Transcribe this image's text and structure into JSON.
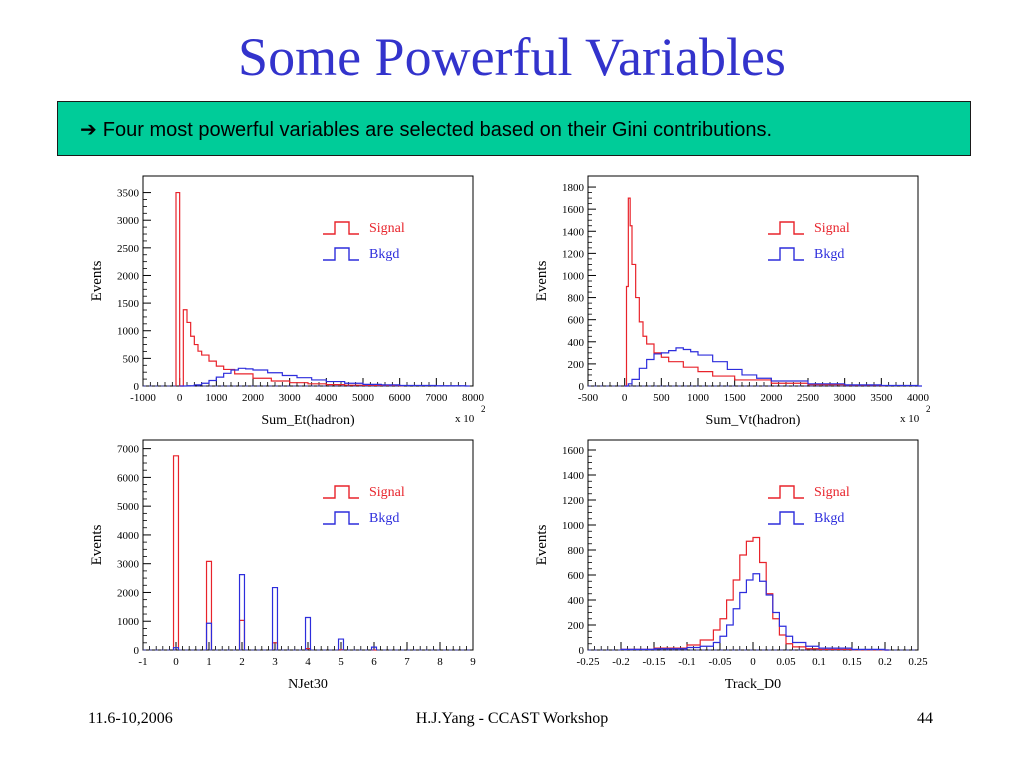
{
  "slide": {
    "title": "Some Powerful Variables",
    "callout": "Four most powerful variables are selected based on their Gini contributions.",
    "callout_icon": "right-arrow-icon",
    "callout_color": "#00cc99",
    "title_color": "#3333cc"
  },
  "footer": {
    "date": "11.6-10,2006",
    "center": "H.J.Yang - CCAST Workshop",
    "page": "44"
  },
  "colors": {
    "signal": "#e8232b",
    "bkgd": "#2d2ddc"
  },
  "chart_data": [
    {
      "type": "histogram",
      "xlabel": "Sum_Et(hadron)",
      "ylabel": "Events",
      "multiplier": "x 10",
      "multiplier_exp": "2",
      "xlim": [
        -1000,
        8000
      ],
      "ylim": [
        0,
        3800
      ],
      "xticks": [
        -1000,
        0,
        1000,
        2000,
        3000,
        4000,
        5000,
        6000,
        7000,
        8000
      ],
      "xtick_labels": [
        "-1000",
        "0",
        "1000",
        "2000",
        "3000",
        "4000",
        "5000",
        "6000",
        "7000",
        "8000"
      ],
      "yticks": [
        0,
        500,
        1000,
        1500,
        2000,
        2500,
        3000,
        3500
      ],
      "legend": [
        "Signal",
        "Bkgd"
      ],
      "legend_position": "top-right",
      "series": [
        {
          "name": "Signal",
          "x": [
            -100,
            0,
            100,
            200,
            300,
            400,
            500,
            600,
            800,
            1000,
            1200,
            1500,
            2000,
            2500,
            3000,
            3500,
            4000,
            4500,
            5000,
            6000
          ],
          "y": [
            3500,
            0,
            1380,
            1150,
            900,
            750,
            630,
            560,
            450,
            360,
            300,
            220,
            140,
            90,
            60,
            40,
            25,
            15,
            10,
            5
          ]
        },
        {
          "name": "Bkgd",
          "x": [
            0,
            200,
            400,
            600,
            800,
            1000,
            1200,
            1400,
            1600,
            1800,
            2000,
            2400,
            2800,
            3200,
            3600,
            4000,
            4500,
            5000,
            5500,
            6000,
            7000,
            7800
          ],
          "y": [
            0,
            5,
            20,
            50,
            100,
            160,
            230,
            290,
            320,
            310,
            290,
            240,
            190,
            150,
            110,
            80,
            50,
            30,
            20,
            10,
            5,
            0
          ]
        }
      ]
    },
    {
      "type": "histogram",
      "xlabel": "Sum_Vt(hadron)",
      "ylabel": "Events",
      "multiplier": "x 10",
      "multiplier_exp": "2",
      "xlim": [
        -500,
        4000
      ],
      "ylim": [
        0,
        1900
      ],
      "xticks": [
        -500,
        0,
        500,
        1000,
        1500,
        2000,
        2500,
        3000,
        3500,
        4000
      ],
      "xtick_labels": [
        "-500",
        "0",
        "500",
        "1000",
        "1500",
        "2000",
        "2500",
        "3000",
        "3500",
        "4000"
      ],
      "yticks": [
        0,
        200,
        400,
        600,
        800,
        1000,
        1200,
        1400,
        1600,
        1800
      ],
      "legend": [
        "Signal",
        "Bkgd"
      ],
      "legend_position": "top-right",
      "series": [
        {
          "name": "Signal",
          "x": [
            0,
            25,
            50,
            75,
            100,
            150,
            200,
            250,
            300,
            400,
            500,
            600,
            800,
            1000,
            1200,
            1500,
            2000,
            2500,
            3000,
            3500
          ],
          "y": [
            0,
            900,
            1700,
            1450,
            1100,
            800,
            580,
            450,
            380,
            300,
            260,
            220,
            170,
            130,
            90,
            55,
            25,
            12,
            6,
            3
          ]
        },
        {
          "name": "Bkgd",
          "x": [
            0,
            50,
            100,
            200,
            300,
            400,
            500,
            600,
            700,
            800,
            900,
            1000,
            1200,
            1400,
            1600,
            1800,
            2000,
            2500,
            3000,
            3500,
            4000
          ],
          "y": [
            0,
            20,
            60,
            160,
            240,
            290,
            300,
            320,
            345,
            330,
            310,
            280,
            220,
            150,
            100,
            70,
            45,
            20,
            10,
            5,
            0
          ]
        }
      ]
    },
    {
      "type": "histogram",
      "xlabel": "NJet30",
      "ylabel": "Events",
      "xlim": [
        -1,
        9
      ],
      "ylim": [
        0,
        7300
      ],
      "xticks": [
        -1,
        0,
        1,
        2,
        3,
        4,
        5,
        6,
        7,
        8,
        9
      ],
      "xtick_labels": [
        "-1",
        "0",
        "1",
        "2",
        "3",
        "4",
        "5",
        "6",
        "7",
        "8",
        "9"
      ],
      "yticks": [
        0,
        1000,
        2000,
        3000,
        4000,
        5000,
        6000,
        7000
      ],
      "legend": [
        "Signal",
        "Bkgd"
      ],
      "legend_position": "top-right",
      "series": [
        {
          "name": "Signal",
          "x": [
            0,
            1,
            2,
            3,
            4,
            5,
            6
          ],
          "y": [
            6750,
            3080,
            1030,
            250,
            50,
            10,
            0
          ]
        },
        {
          "name": "Bkgd",
          "x": [
            0,
            1,
            2,
            3,
            4,
            5,
            6
          ],
          "y": [
            80,
            930,
            2620,
            2170,
            1130,
            380,
            100
          ]
        }
      ]
    },
    {
      "type": "histogram",
      "xlabel": "Track_D0",
      "ylabel": "Events",
      "xlim": [
        -0.25,
        0.25
      ],
      "ylim": [
        0,
        1680
      ],
      "xticks": [
        -0.25,
        -0.2,
        -0.15,
        -0.1,
        -0.05,
        0,
        0.05,
        0.1,
        0.15,
        0.2,
        0.25
      ],
      "xtick_labels": [
        "-0.25",
        "-0.2",
        "-0.15",
        "-0.1",
        "-0.05",
        "0",
        "0.05",
        "0.1",
        "0.15",
        "0.2",
        "0.25"
      ],
      "yticks": [
        0,
        200,
        400,
        600,
        800,
        1000,
        1200,
        1400,
        1600
      ],
      "legend": [
        "Signal",
        "Bkgd"
      ],
      "legend_position": "top-right",
      "series": [
        {
          "name": "Signal",
          "x": [
            -0.2,
            -0.15,
            -0.1,
            -0.08,
            -0.06,
            -0.05,
            -0.04,
            -0.03,
            -0.02,
            -0.01,
            0,
            0.01,
            0.02,
            0.03,
            0.04,
            0.05,
            0.06,
            0.08,
            0.1,
            0.15,
            0.2
          ],
          "y": [
            5,
            15,
            40,
            80,
            160,
            250,
            400,
            560,
            760,
            870,
            900,
            700,
            450,
            250,
            120,
            50,
            25,
            10,
            5,
            2,
            0
          ]
        },
        {
          "name": "Bkgd",
          "x": [
            -0.2,
            -0.15,
            -0.1,
            -0.08,
            -0.06,
            -0.05,
            -0.04,
            -0.03,
            -0.02,
            -0.01,
            0,
            0.01,
            0.02,
            0.03,
            0.04,
            0.05,
            0.06,
            0.08,
            0.1,
            0.15,
            0.2
          ],
          "y": [
            5,
            10,
            20,
            30,
            60,
            110,
            200,
            330,
            460,
            560,
            610,
            550,
            440,
            300,
            190,
            110,
            60,
            30,
            15,
            5,
            0
          ]
        }
      ]
    }
  ]
}
